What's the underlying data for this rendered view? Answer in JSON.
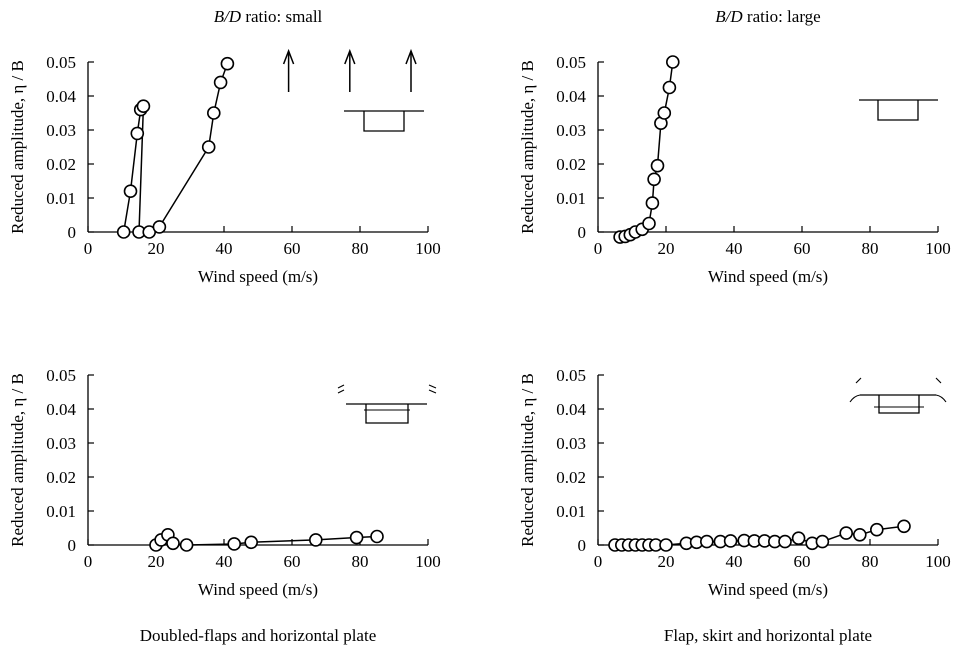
{
  "chart_data": [
    {
      "type": "scatter",
      "title_prefix": "B/D",
      "title_suffix": " ratio: small",
      "xlabel": "Wind speed (m/s)",
      "ylabel": "Reduced amplitude, η / B",
      "xlim": [
        0,
        100
      ],
      "ylim": [
        0,
        0.05
      ],
      "xticks": [
        "0",
        "20",
        "40",
        "60",
        "80",
        "100"
      ],
      "yticks": [
        "0",
        "0.01",
        "0.02",
        "0.03",
        "0.04",
        "0.05"
      ],
      "arrows_x": [
        59,
        77,
        95
      ],
      "series": [
        {
          "values": [
            [
              10.5,
              0.0
            ],
            [
              12.5,
              0.012
            ],
            [
              14.5,
              0.029
            ],
            [
              15.5,
              0.036
            ],
            [
              16.3,
              0.037
            ],
            [
              15.0,
              0.0
            ],
            [
              18.0,
              0.0
            ]
          ]
        },
        {
          "values": [
            [
              21,
              0.0015
            ],
            [
              35.5,
              0.025
            ],
            [
              37,
              0.035
            ],
            [
              39,
              0.044
            ],
            [
              41,
              0.0495
            ]
          ]
        }
      ],
      "icon": "deck-section-plain-icon"
    },
    {
      "type": "scatter",
      "title_prefix": "B/D",
      "title_suffix": " ratio: large",
      "xlabel": "Wind speed (m/s)",
      "ylabel": "Reduced amplitude, η / B",
      "xlim": [
        0,
        100
      ],
      "ylim": [
        0,
        0.05
      ],
      "xticks": [
        "0",
        "20",
        "40",
        "60",
        "80",
        "100"
      ],
      "yticks": [
        "0",
        "0.01",
        "0.02",
        "0.03",
        "0.04",
        "0.05"
      ],
      "series": [
        {
          "values": [
            [
              6.5,
              -0.0015
            ],
            [
              8.0,
              -0.0013
            ],
            [
              9.5,
              -0.0008
            ],
            [
              11,
              0.0
            ],
            [
              13,
              0.0008
            ],
            [
              15,
              0.0025
            ],
            [
              16,
              0.0085
            ],
            [
              16.5,
              0.0155
            ],
            [
              17.5,
              0.0195
            ],
            [
              18.5,
              0.032
            ],
            [
              19.5,
              0.035
            ],
            [
              21,
              0.0425
            ],
            [
              22,
              0.05
            ]
          ]
        }
      ],
      "icon": "deck-section-plain-icon"
    },
    {
      "type": "scatter",
      "xlabel": "Wind speed (m/s)",
      "ylabel": "Reduced amplitude, η / B",
      "xlim": [
        0,
        100
      ],
      "ylim": [
        0,
        0.05
      ],
      "xticks": [
        "0",
        "20",
        "40",
        "60",
        "80",
        "100"
      ],
      "yticks": [
        "0",
        "0.01",
        "0.02",
        "0.03",
        "0.04",
        "0.05"
      ],
      "series": [
        {
          "values": [
            [
              20,
              0.0
            ],
            [
              21.5,
              0.0015
            ],
            [
              23.5,
              0.003
            ],
            [
              25,
              0.0005
            ],
            [
              29,
              0.0
            ],
            [
              43,
              0.0003
            ],
            [
              48,
              0.0008
            ],
            [
              67,
              0.0015
            ],
            [
              79,
              0.0022
            ],
            [
              85,
              0.0025
            ]
          ]
        }
      ],
      "icon": "deck-section-doubled-flaps-icon",
      "caption": "Doubled-flaps and horizontal plate"
    },
    {
      "type": "scatter",
      "xlabel": "Wind speed (m/s)",
      "ylabel": "Reduced amplitude, η / B",
      "xlim": [
        0,
        100
      ],
      "ylim": [
        0,
        0.05
      ],
      "xticks": [
        "0",
        "20",
        "40",
        "60",
        "80",
        "100"
      ],
      "yticks": [
        "0",
        "0.01",
        "0.02",
        "0.03",
        "0.04",
        "0.05"
      ],
      "series": [
        {
          "values": [
            [
              5,
              0.0
            ],
            [
              7,
              0.0
            ],
            [
              9,
              0.0
            ],
            [
              11,
              0.0
            ],
            [
              13,
              0.0
            ],
            [
              15,
              0.0
            ],
            [
              17,
              0.0
            ],
            [
              20,
              0.0
            ],
            [
              26,
              0.0005
            ],
            [
              29,
              0.0008
            ],
            [
              32,
              0.001
            ],
            [
              36,
              0.001
            ],
            [
              39,
              0.0012
            ],
            [
              43,
              0.0013
            ],
            [
              46,
              0.0012
            ],
            [
              49,
              0.0012
            ],
            [
              52,
              0.001
            ],
            [
              55,
              0.001
            ],
            [
              59,
              0.002
            ],
            [
              63,
              0.0005
            ],
            [
              66,
              0.001
            ],
            [
              73,
              0.0035
            ],
            [
              77,
              0.003
            ],
            [
              82,
              0.0045
            ],
            [
              90,
              0.0055
            ]
          ]
        }
      ],
      "icon": "deck-section-flap-skirt-icon",
      "caption": "Flap, skirt and horizontal plate"
    }
  ]
}
